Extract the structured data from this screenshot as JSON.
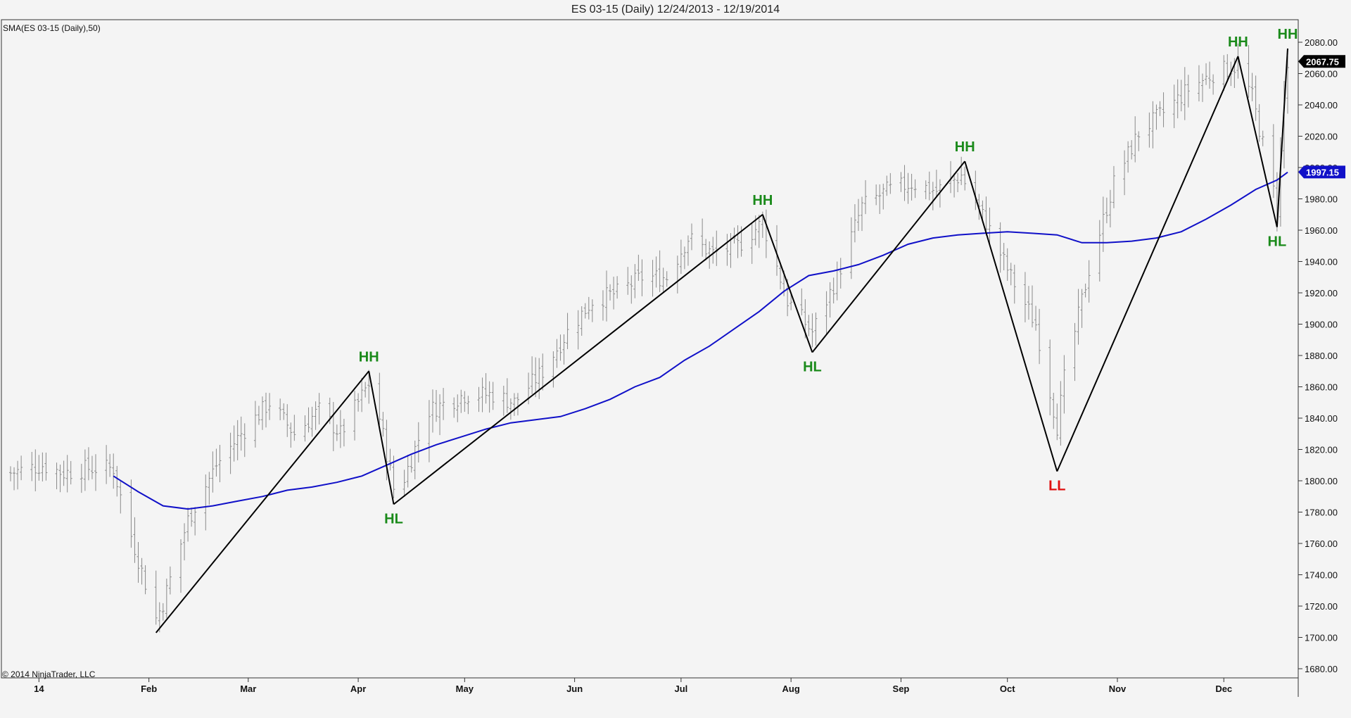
{
  "header": {
    "title": "ES 03-15 (Daily)  12/24/2013 - 12/19/2014"
  },
  "indicator_label": "SMA(ES 03-15 (Daily),50)",
  "copyright": "© 2014 NinjaTrader, LLC",
  "colors": {
    "background": "#f4f4f4",
    "bars": "#8a8a8a",
    "sma": "#1010c8",
    "zigzag": "#000000",
    "swing_up": "#1a8a1a",
    "swing_down": "#e01010",
    "price_badge": "#000000",
    "sma_badge": "#1010c8"
  },
  "chart_data": {
    "type": "line",
    "instrument": "ES 03-15 (Daily)",
    "date_range": [
      "12/24/2013",
      "12/19/2014"
    ],
    "ylim": [
      1680,
      2100
    ],
    "y_ticks": [
      1680,
      1700,
      1720,
      1740,
      1760,
      1780,
      1800,
      1820,
      1840,
      1860,
      1880,
      1900,
      1920,
      1940,
      1960,
      1980,
      2000,
      2020,
      2040,
      2060,
      2080
    ],
    "y_tick_labels": [
      "1680.00",
      "1700.00",
      "1720.00",
      "1740.00",
      "1760.00",
      "1780.00",
      "1800.00",
      "1820.00",
      "1840.00",
      "1860.00",
      "1880.00",
      "1900.00",
      "1920.00",
      "1940.00",
      "1960.00",
      "1980.00",
      "2000.00",
      "2020.00",
      "2040.00",
      "2060.00",
      "2080.00"
    ],
    "x_labels": [
      {
        "label": "14",
        "date": "2014-01-01"
      },
      {
        "label": "Feb",
        "date": "2014-02-01"
      },
      {
        "label": "Mar",
        "date": "2014-03-01"
      },
      {
        "label": "Apr",
        "date": "2014-04-01"
      },
      {
        "label": "May",
        "date": "2014-05-01"
      },
      {
        "label": "Jun",
        "date": "2014-06-01"
      },
      {
        "label": "Jul",
        "date": "2014-07-01"
      },
      {
        "label": "Aug",
        "date": "2014-08-01"
      },
      {
        "label": "Sep",
        "date": "2014-09-01"
      },
      {
        "label": "Oct",
        "date": "2014-10-01"
      },
      {
        "label": "Nov",
        "date": "2014-11-01"
      },
      {
        "label": "Dec",
        "date": "2014-12-01"
      }
    ],
    "price_series": {
      "name": "ES 03-15 (Daily)",
      "style": "ohlc",
      "anchors": [
        [
          "2013-12-24",
          1805
        ],
        [
          "2014-01-02",
          1810
        ],
        [
          "2014-01-08",
          1805
        ],
        [
          "2014-01-15",
          1808
        ],
        [
          "2014-01-22",
          1808
        ],
        [
          "2014-01-24",
          1790
        ],
        [
          "2014-01-27",
          1765
        ],
        [
          "2014-02-03",
          1712
        ],
        [
          "2014-02-05",
          1722
        ],
        [
          "2014-02-12",
          1775
        ],
        [
          "2014-02-20",
          1810
        ],
        [
          "2014-02-27",
          1830
        ],
        [
          "2014-03-07",
          1850
        ],
        [
          "2014-03-14",
          1830
        ],
        [
          "2014-03-21",
          1845
        ],
        [
          "2014-03-27",
          1830
        ],
        [
          "2014-04-04",
          1862
        ],
        [
          "2014-04-07",
          1840
        ],
        [
          "2014-04-11",
          1795
        ],
        [
          "2014-04-14",
          1802
        ],
        [
          "2014-04-21",
          1845
        ],
        [
          "2014-05-01",
          1855
        ],
        [
          "2014-05-09",
          1855
        ],
        [
          "2014-05-15",
          1850
        ],
        [
          "2014-05-23",
          1870
        ],
        [
          "2014-05-30",
          1895
        ],
        [
          "2014-06-06",
          1915
        ],
        [
          "2014-06-13",
          1920
        ],
        [
          "2014-06-20",
          1930
        ],
        [
          "2014-06-27",
          1930
        ],
        [
          "2014-07-03",
          1955
        ],
        [
          "2014-07-10",
          1945
        ],
        [
          "2014-07-17",
          1950
        ],
        [
          "2014-07-24",
          1965
        ],
        [
          "2014-07-31",
          1915
        ],
        [
          "2014-08-07",
          1895
        ],
        [
          "2014-08-14",
          1930
        ],
        [
          "2014-08-21",
          1975
        ],
        [
          "2014-08-28",
          1985
        ],
        [
          "2014-09-04",
          1990
        ],
        [
          "2014-09-11",
          1985
        ],
        [
          "2014-09-18",
          1995
        ],
        [
          "2014-09-25",
          1965
        ],
        [
          "2014-10-02",
          1930
        ],
        [
          "2014-10-09",
          1900
        ],
        [
          "2014-10-15",
          1835
        ],
        [
          "2014-10-17",
          1865
        ],
        [
          "2014-10-24",
          1935
        ],
        [
          "2014-10-31",
          1990
        ],
        [
          "2014-11-07",
          2022
        ],
        [
          "2014-11-14",
          2035
        ],
        [
          "2014-11-21",
          2050
        ],
        [
          "2014-11-28",
          2060
        ],
        [
          "2014-12-05",
          2065
        ],
        [
          "2014-12-09",
          2045
        ],
        [
          "2014-12-16",
          1975
        ],
        [
          "2014-12-18",
          2045
        ],
        [
          "2014-12-19",
          2064
        ]
      ]
    },
    "sma_series": {
      "name": "SMA(ES 03-15 (Daily),50)",
      "period": 50,
      "last_value": 1997.15,
      "points": [
        [
          "2014-01-22",
          1803
        ],
        [
          "2014-01-29",
          1793
        ],
        [
          "2014-02-05",
          1784
        ],
        [
          "2014-02-12",
          1782
        ],
        [
          "2014-02-19",
          1784
        ],
        [
          "2014-02-26",
          1787
        ],
        [
          "2014-03-05",
          1790
        ],
        [
          "2014-03-12",
          1794
        ],
        [
          "2014-03-19",
          1796
        ],
        [
          "2014-03-26",
          1799
        ],
        [
          "2014-04-02",
          1803
        ],
        [
          "2014-04-09",
          1810
        ],
        [
          "2014-04-16",
          1817
        ],
        [
          "2014-04-23",
          1823
        ],
        [
          "2014-04-30",
          1828
        ],
        [
          "2014-05-07",
          1833
        ],
        [
          "2014-05-14",
          1837
        ],
        [
          "2014-05-21",
          1839
        ],
        [
          "2014-05-28",
          1841
        ],
        [
          "2014-06-04",
          1846
        ],
        [
          "2014-06-11",
          1852
        ],
        [
          "2014-06-18",
          1860
        ],
        [
          "2014-06-25",
          1866
        ],
        [
          "2014-07-02",
          1877
        ],
        [
          "2014-07-09",
          1886
        ],
        [
          "2014-07-16",
          1897
        ],
        [
          "2014-07-23",
          1908
        ],
        [
          "2014-07-30",
          1921
        ],
        [
          "2014-08-06",
          1931
        ],
        [
          "2014-08-13",
          1934
        ],
        [
          "2014-08-20",
          1938
        ],
        [
          "2014-08-27",
          1944
        ],
        [
          "2014-09-03",
          1951
        ],
        [
          "2014-09-10",
          1955
        ],
        [
          "2014-09-17",
          1957
        ],
        [
          "2014-09-24",
          1958
        ],
        [
          "2014-10-01",
          1959
        ],
        [
          "2014-10-08",
          1958
        ],
        [
          "2014-10-15",
          1957
        ],
        [
          "2014-10-22",
          1952
        ],
        [
          "2014-10-29",
          1952
        ],
        [
          "2014-11-05",
          1953
        ],
        [
          "2014-11-12",
          1955
        ],
        [
          "2014-11-19",
          1959
        ],
        [
          "2014-11-26",
          1967
        ],
        [
          "2014-12-03",
          1976
        ],
        [
          "2014-12-10",
          1986
        ],
        [
          "2014-12-16",
          1992
        ],
        [
          "2014-12-19",
          1997
        ]
      ]
    },
    "zigzag_swings": [
      {
        "date": "2014-02-03",
        "value": 1703,
        "label": "",
        "type": "low"
      },
      {
        "date": "2014-04-04",
        "value": 1870,
        "label": "HH",
        "type": "high"
      },
      {
        "date": "2014-04-11",
        "value": 1785,
        "label": "HL",
        "type": "low"
      },
      {
        "date": "2014-07-24",
        "value": 1970,
        "label": "HH",
        "type": "high"
      },
      {
        "date": "2014-08-07",
        "value": 1882,
        "label": "HL",
        "type": "low"
      },
      {
        "date": "2014-09-19",
        "value": 2004,
        "label": "HH",
        "type": "high"
      },
      {
        "date": "2014-10-15",
        "value": 1806,
        "label": "LL",
        "type": "low"
      },
      {
        "date": "2014-12-05",
        "value": 2071,
        "label": "HH",
        "type": "high"
      },
      {
        "date": "2014-12-16",
        "value": 1962,
        "label": "HL",
        "type": "low"
      },
      {
        "date": "2014-12-19",
        "value": 2076,
        "label": "HH",
        "type": "high"
      }
    ],
    "current_price": {
      "value": 2067.75,
      "label": "2067.75"
    },
    "sma_current": {
      "value": 1997.15,
      "label": "1997.15"
    },
    "grid": false,
    "legend": "none"
  }
}
